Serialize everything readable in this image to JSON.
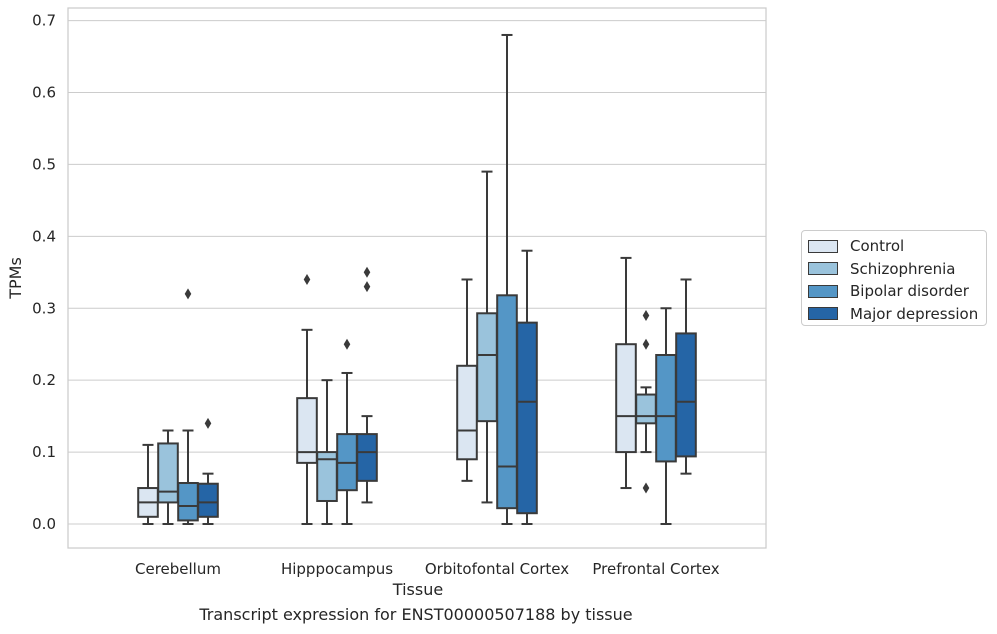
{
  "chart_data": {
    "type": "box",
    "xlabel": "Tissue",
    "ylabel": "TPMs",
    "title": "Transcript expression for ENST00000507188 by tissue",
    "ylim": [
      -0.033,
      0.718
    ],
    "yticks": [
      0.0,
      0.1,
      0.2,
      0.3,
      0.4,
      0.5,
      0.6,
      0.7
    ],
    "ytick_labels": [
      "0.0",
      "0.1",
      "0.2",
      "0.3",
      "0.4",
      "0.5",
      "0.6",
      "0.7"
    ],
    "grid": "horizontal",
    "legend_position": "right, outside plot",
    "categories": [
      "Cerebellum",
      "Hipppocampus",
      "Orbitofontal Cortex",
      "Prefrontal Cortex"
    ],
    "series": [
      {
        "name": "Control",
        "color": "#dbe6f2",
        "boxes": [
          {
            "whislo": 0.0,
            "q1": 0.01,
            "med": 0.03,
            "q3": 0.05,
            "whishi": 0.11,
            "fliers": []
          },
          {
            "whislo": 0.0,
            "q1": 0.085,
            "med": 0.1,
            "q3": 0.175,
            "whishi": 0.27,
            "fliers": [
              0.34
            ]
          },
          {
            "whislo": 0.06,
            "q1": 0.09,
            "med": 0.13,
            "q3": 0.22,
            "whishi": 0.34,
            "fliers": []
          },
          {
            "whislo": 0.05,
            "q1": 0.1,
            "med": 0.15,
            "q3": 0.25,
            "whishi": 0.37,
            "fliers": []
          }
        ]
      },
      {
        "name": "Schizophrenia",
        "color": "#9ac3dc",
        "boxes": [
          {
            "whislo": 0.0,
            "q1": 0.03,
            "med": 0.045,
            "q3": 0.112,
            "whishi": 0.13,
            "fliers": []
          },
          {
            "whislo": 0.0,
            "q1": 0.032,
            "med": 0.09,
            "q3": 0.1,
            "whishi": 0.2,
            "fliers": []
          },
          {
            "whislo": 0.03,
            "q1": 0.143,
            "med": 0.235,
            "q3": 0.293,
            "whishi": 0.49,
            "fliers": []
          },
          {
            "whislo": 0.1,
            "q1": 0.14,
            "med": 0.15,
            "q3": 0.18,
            "whishi": 0.19,
            "fliers": [
              0.25,
              0.29,
              0.05
            ]
          }
        ]
      },
      {
        "name": "Bipolar disorder",
        "color": "#5496c6",
        "boxes": [
          {
            "whislo": 0.0,
            "q1": 0.005,
            "med": 0.025,
            "q3": 0.057,
            "whishi": 0.13,
            "fliers": [
              0.32
            ]
          },
          {
            "whislo": 0.0,
            "q1": 0.047,
            "med": 0.085,
            "q3": 0.125,
            "whishi": 0.21,
            "fliers": [
              0.25
            ]
          },
          {
            "whislo": 0.0,
            "q1": 0.022,
            "med": 0.08,
            "q3": 0.318,
            "whishi": 0.68,
            "fliers": []
          },
          {
            "whislo": 0.0,
            "q1": 0.087,
            "med": 0.15,
            "q3": 0.235,
            "whishi": 0.3,
            "fliers": []
          }
        ]
      },
      {
        "name": "Major depression",
        "color": "#2565a6",
        "boxes": [
          {
            "whislo": 0.0,
            "q1": 0.01,
            "med": 0.03,
            "q3": 0.056,
            "whishi": 0.07,
            "fliers": [
              0.14
            ]
          },
          {
            "whislo": 0.03,
            "q1": 0.06,
            "med": 0.1,
            "q3": 0.125,
            "whishi": 0.15,
            "fliers": [
              0.33,
              0.35
            ]
          },
          {
            "whislo": 0.0,
            "q1": 0.015,
            "med": 0.17,
            "q3": 0.28,
            "whishi": 0.38,
            "fliers": []
          },
          {
            "whislo": 0.07,
            "q1": 0.094,
            "med": 0.17,
            "q3": 0.265,
            "whishi": 0.34,
            "fliers": []
          }
        ]
      }
    ]
  }
}
